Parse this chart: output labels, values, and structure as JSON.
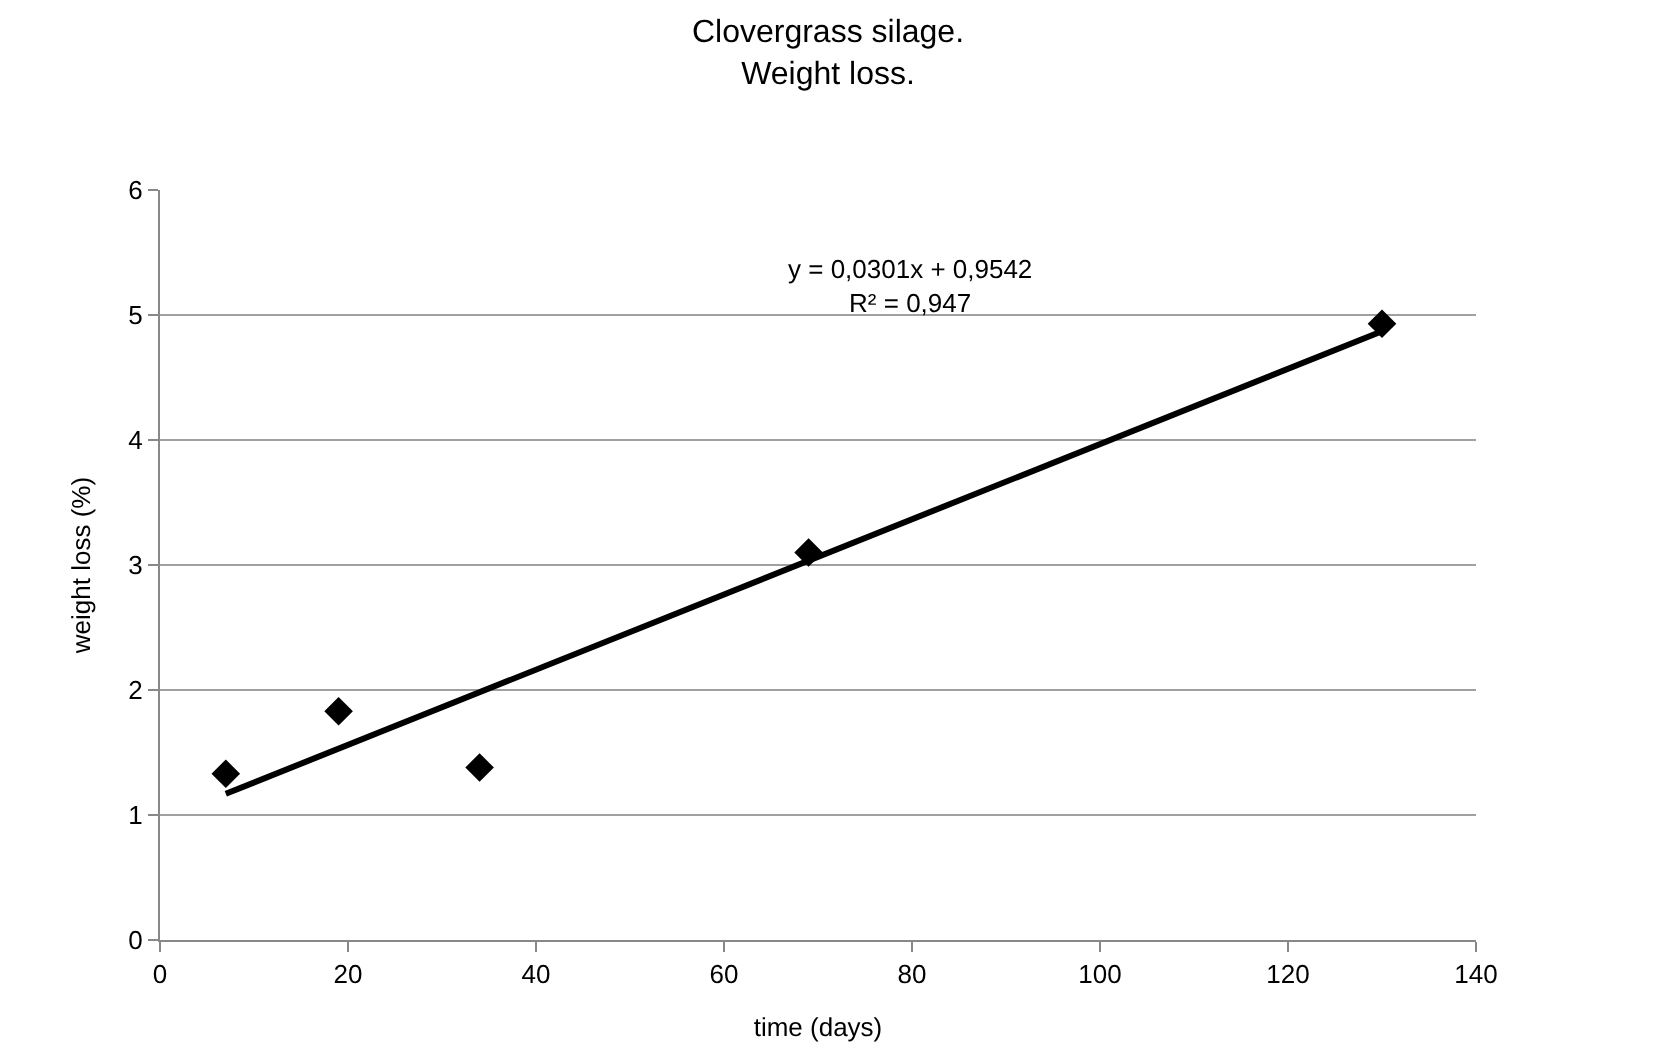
{
  "chart_data": {
    "type": "scatter",
    "title": "Clovergrass silage.\nWeight loss.",
    "xlabel": "time (days)",
    "ylabel": "weight loss (%)",
    "x": [
      7,
      19,
      34,
      69,
      130
    ],
    "series": [
      {
        "color": "#000000",
        "marker": "diamond",
        "values": [
          1.33,
          1.83,
          1.38,
          3.1,
          4.93
        ]
      },
      {
        "type": "line",
        "color": "#000000",
        "marker": "none",
        "line_style": "solid",
        "x": [
          7,
          130
        ],
        "values": [
          1.17,
          4.87
        ]
      }
    ],
    "annotations": [
      "y = 0,0301x + 0,9542\nR² = 0,947"
    ],
    "xlim": [
      0,
      140
    ],
    "xticks": [
      0,
      20,
      40,
      60,
      80,
      100,
      120,
      140
    ],
    "ylim": [
      0,
      6
    ],
    "yticks": [
      0,
      1,
      2,
      3,
      4,
      5,
      6
    ],
    "grid": "y",
    "legend": false
  }
}
